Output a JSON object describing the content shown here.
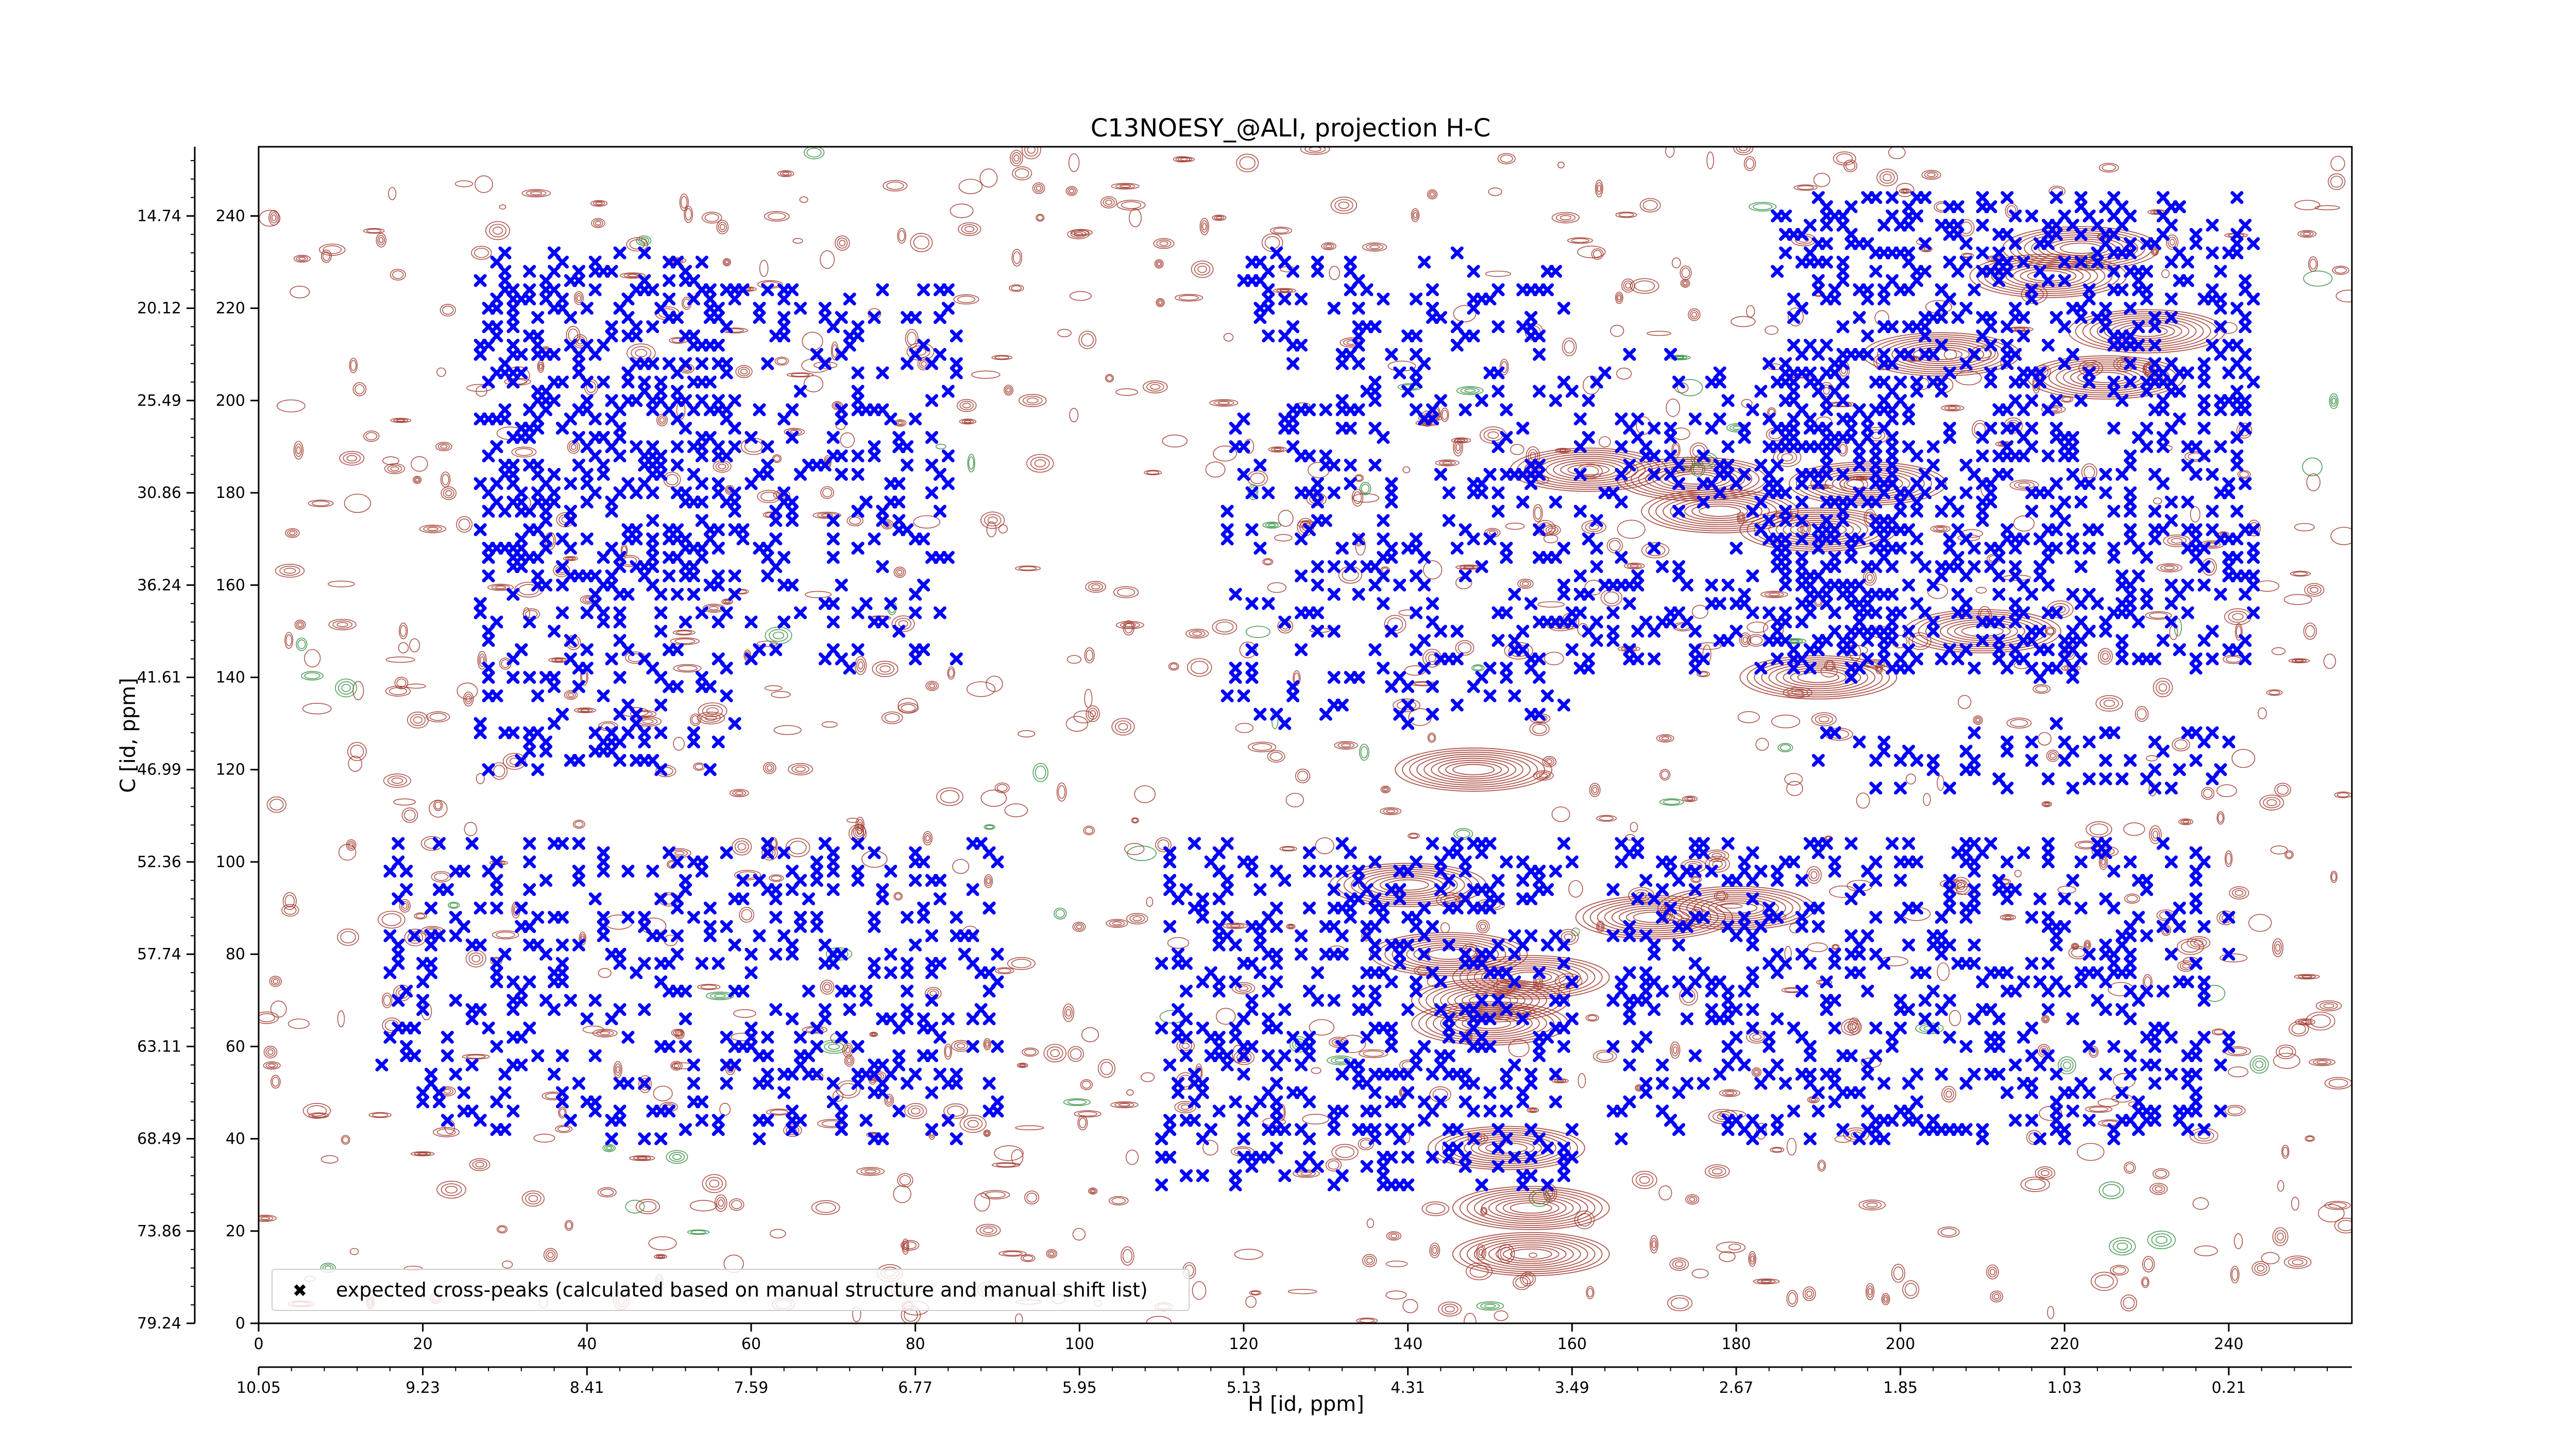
{
  "chart_data": {
    "type": "scatter",
    "title": "C13NOESY_@ALI, projection H-C",
    "xlabel": "H [id, ppm]",
    "ylabel": "C [id, ppm]",
    "x_index_range": [
      0,
      255
    ],
    "y_index_range": [
      0,
      255
    ],
    "x_index_ticks": [
      0,
      20,
      40,
      60,
      80,
      100,
      120,
      140,
      160,
      180,
      200,
      220,
      240
    ],
    "x_ppm_ticks": [
      "10.05",
      "9.23",
      "8.41",
      "7.59",
      "6.77",
      "5.95",
      "5.13",
      "4.31",
      "3.49",
      "2.67",
      "1.85",
      "1.03",
      "0.21"
    ],
    "y_index_ticks": [
      0,
      20,
      40,
      60,
      80,
      100,
      120,
      140,
      160,
      180,
      200,
      220,
      240
    ],
    "y_ppm_ticks": [
      "79.24",
      "73.86",
      "68.49",
      "63.11",
      "57.74",
      "52.36",
      "46.99",
      "41.61",
      "36.24",
      "30.86",
      "25.49",
      "20.12",
      "14.74"
    ],
    "grid": false,
    "legend_position": "bottom-left",
    "legend_entries": [
      "expected cross-peaks (calculated based on manual structure and manual shift list)"
    ],
    "series": [
      {
        "name": "expected cross-peaks (calculated based on manual structure and manual shift list)",
        "color": "#0000ff",
        "marker": "x",
        "clusters": [
          {
            "x": [
              27,
              58
            ],
            "y": [
              160,
              232
            ],
            "count": 420
          },
          {
            "x": [
              27,
              58
            ],
            "y": [
              120,
              160
            ],
            "count": 120
          },
          {
            "x": [
              58,
              85
            ],
            "y": [
              140,
              225
            ],
            "count": 180
          },
          {
            "x": [
              15,
              90
            ],
            "y": [
              40,
              105
            ],
            "count": 420
          },
          {
            "x": [
              110,
              160
            ],
            "y": [
              30,
              105
            ],
            "count": 460
          },
          {
            "x": [
              118,
              160
            ],
            "y": [
              130,
              232
            ],
            "count": 320
          },
          {
            "x": [
              160,
              200
            ],
            "y": [
              140,
              210
            ],
            "count": 250
          },
          {
            "x": [
              185,
              243
            ],
            "y": [
              140,
              245
            ],
            "count": 900
          },
          {
            "x": [
              165,
              240
            ],
            "y": [
              40,
              105
            ],
            "count": 520
          },
          {
            "x": [
              190,
              240
            ],
            "y": [
              115,
              130
            ],
            "count": 60
          }
        ]
      }
    ],
    "contour_colors": {
      "positive": "#a0362a",
      "negative": "#2e8b3a"
    }
  }
}
